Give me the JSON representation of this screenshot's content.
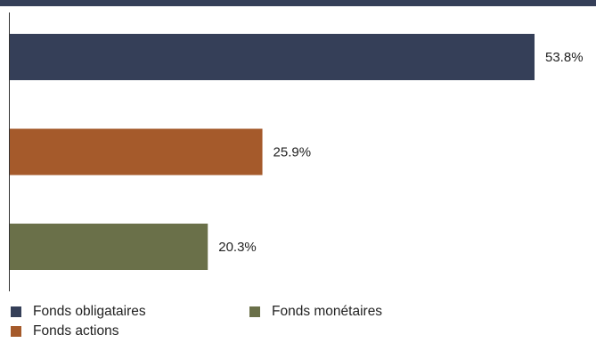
{
  "chart_data": {
    "type": "bar",
    "orientation": "horizontal",
    "categories": [
      "Fonds obligataires",
      "Fonds actions",
      "Fonds monétaires"
    ],
    "values": [
      53.8,
      25.9,
      20.3
    ],
    "value_labels": [
      "53.8%",
      "25.9%",
      "20.3%"
    ],
    "colors": [
      "#353f58",
      "#a55a2b",
      "#6a7049"
    ],
    "xlim": [
      0,
      53.8
    ],
    "title": "",
    "xlabel": "",
    "ylabel": "",
    "grid": false,
    "legend_position": "bottom-left"
  },
  "header_bar_color": "#353f58",
  "legend": [
    {
      "label": "Fonds obligataires",
      "color": "#353f58"
    },
    {
      "label": "Fonds monétaires",
      "color": "#6a7049"
    },
    {
      "label": "Fonds actions",
      "color": "#a55a2b"
    }
  ]
}
